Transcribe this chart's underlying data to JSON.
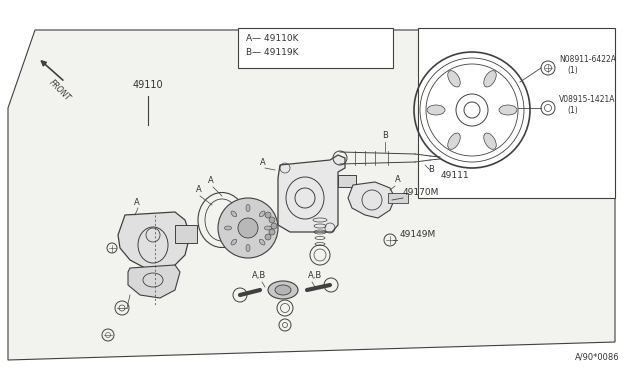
{
  "bg_color": "#ffffff",
  "main_area_color": "#f8f8f5",
  "line_color": "#404040",
  "text_color": "#333333",
  "title_bottom": "A/90*0086",
  "labels": {
    "part_49110": "49110",
    "part_49111": "49111",
    "part_49170M": "49170M",
    "part_49149M": "49149M",
    "legend_A": "A— 49110K",
    "legend_B": "B— 49119K",
    "bolt1_label": "N08911-6422A",
    "bolt1_qty": "(1)",
    "bolt2_label": "V08915-1421A",
    "bolt2_qty": "(1)"
  }
}
